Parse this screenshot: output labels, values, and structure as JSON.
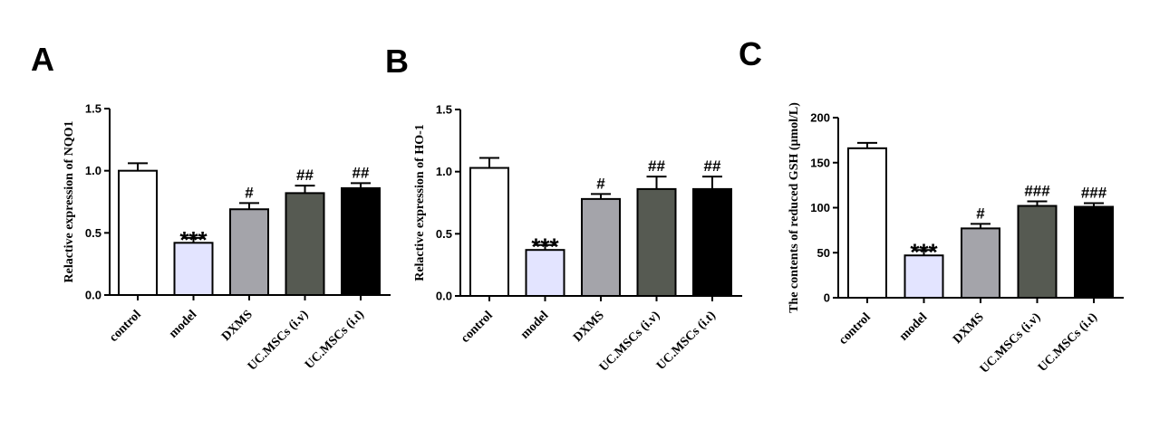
{
  "chart_data": [
    {
      "type": "bar",
      "panel": "A",
      "ylabel": "Relactive expression of NQO1",
      "categories": [
        "control",
        "model",
        "DXMS",
        "UC.MSCs (i.v)",
        "UC.MSCs (i.t)"
      ],
      "values": [
        1.0,
        0.42,
        0.69,
        0.82,
        0.86
      ],
      "errors": [
        0.06,
        0.04,
        0.05,
        0.06,
        0.04
      ],
      "significance": [
        "",
        "***",
        "#",
        "##",
        "##"
      ],
      "colors": [
        "#ffffff",
        "#e3e4ff",
        "#a4a4aa",
        "#565a52",
        "#000000"
      ],
      "ylim": [
        0,
        1.5
      ],
      "yticks": [
        "0.0",
        "0.5",
        "1.0",
        "1.5"
      ]
    },
    {
      "type": "bar",
      "panel": "B",
      "ylabel": "Relactive expression of HO-1",
      "categories": [
        "control",
        "model",
        "DXMS",
        "UC.MSCs (i.v)",
        "UC.MSCs (i.t)"
      ],
      "values": [
        1.03,
        0.37,
        0.78,
        0.86,
        0.86
      ],
      "errors": [
        0.08,
        0.04,
        0.04,
        0.1,
        0.1
      ],
      "significance": [
        "",
        "***",
        "#",
        "##",
        "##"
      ],
      "colors": [
        "#ffffff",
        "#e3e4ff",
        "#a4a4aa",
        "#565a52",
        "#000000"
      ],
      "ylim": [
        0,
        1.5
      ],
      "yticks": [
        "0.0",
        "0.5",
        "1.0",
        "1.5"
      ]
    },
    {
      "type": "bar",
      "panel": "C",
      "ylabel": "The contents of reduced GSH (μmol/L)",
      "categories": [
        "control",
        "model",
        "DXMS",
        "UC.MSCs (i.v)",
        "UC.MSCs (i.t)"
      ],
      "values": [
        166,
        47,
        77,
        102,
        101
      ],
      "errors": [
        6,
        6,
        5,
        5,
        4
      ],
      "significance": [
        "",
        "***",
        "#",
        "###",
        "###"
      ],
      "colors": [
        "#ffffff",
        "#e3e4ff",
        "#a4a4aa",
        "#565a52",
        "#000000"
      ],
      "ylim": [
        0,
        200
      ],
      "yticks": [
        "0",
        "50",
        "100",
        "150",
        "200"
      ]
    }
  ]
}
